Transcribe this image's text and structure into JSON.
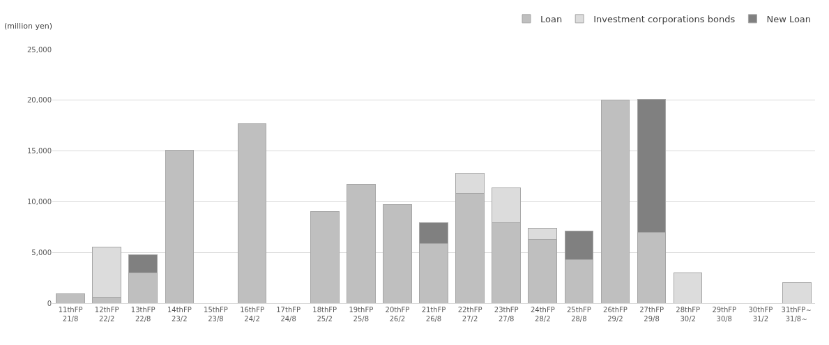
{
  "chart_data": {
    "type": "bar",
    "stacked": true,
    "ylabel": "(million yen)",
    "categories": [
      "11thFP\n21/8",
      "12thFP\n22/2",
      "13thFP\n22/8",
      "14thFP\n23/2",
      "15thFP\n23/8",
      "16thFP\n24/2",
      "17thFP\n24/8",
      "18thFP\n25/2",
      "19thFP\n25/8",
      "20thFP\n26/2",
      "21thFP\n26/8",
      "22thFP\n27/2",
      "23thFP\n27/8",
      "24thFP\n28/2",
      "25thFP\n28/8",
      "26thFP\n29/2",
      "27thFP\n29/8",
      "28thFP\n30/2",
      "29thFP\n30/8",
      "30thFP\n31/2",
      "31thFP～\n31/8～"
    ],
    "series": [
      {
        "name": "Loan",
        "color": "#bfbfbf",
        "values": [
          900,
          550,
          3000,
          15100,
          null,
          17700,
          null,
          9000,
          11700,
          9700,
          5850,
          10800,
          7900,
          6300,
          4300,
          20000,
          6950,
          null,
          null,
          null,
          null
        ]
      },
      {
        "name": "Investment corporations bonds",
        "color": "#dcdcdc",
        "values": [
          null,
          4950,
          null,
          null,
          null,
          null,
          null,
          null,
          null,
          null,
          null,
          2000,
          3450,
          1050,
          null,
          null,
          null,
          3000,
          null,
          null,
          2000
        ]
      },
      {
        "name": "New Loan",
        "color": "#808080",
        "values": [
          null,
          null,
          1750,
          null,
          null,
          null,
          null,
          null,
          null,
          null,
          2050,
          null,
          null,
          null,
          2800,
          null,
          13150,
          null,
          null,
          null,
          null
        ]
      }
    ],
    "ylim": [
      0,
      25000
    ],
    "yticks": [
      {
        "value": 0,
        "label": "0"
      },
      {
        "value": 5000,
        "label": "5,000"
      },
      {
        "value": 10000,
        "label": "10,000"
      },
      {
        "value": 15000,
        "label": "15,000"
      },
      {
        "value": 20000,
        "label": "20,000"
      },
      {
        "value": 25000,
        "label": "25,000"
      }
    ],
    "grid": "y",
    "legend": "top right"
  }
}
